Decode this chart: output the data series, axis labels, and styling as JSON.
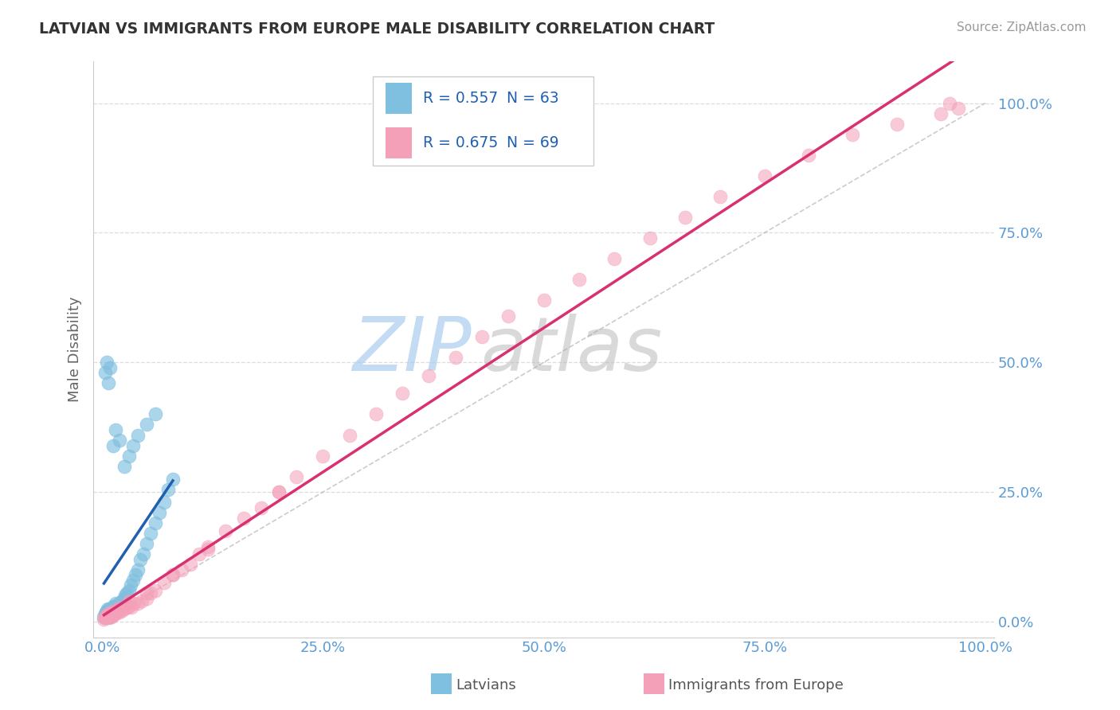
{
  "title": "LATVIAN VS IMMIGRANTS FROM EUROPE MALE DISABILITY CORRELATION CHART",
  "source_text": "Source: ZipAtlas.com",
  "ylabel": "Male Disability",
  "legend_label_1": "Latvians",
  "legend_label_2": "Immigrants from Europe",
  "R1": 0.557,
  "N1": 63,
  "R2": 0.675,
  "N2": 69,
  "color1": "#7fbfdf",
  "color2": "#f4a0b8",
  "line_color1": "#2060b0",
  "line_color2": "#d83070",
  "ref_line_color": "#aaaaaa",
  "watermark": "ZIPatlas",
  "watermark_color1": "#aaccee",
  "watermark_color2": "#bbbbbb",
  "xlim": [
    -0.01,
    1.01
  ],
  "ylim": [
    -0.03,
    1.08
  ],
  "xticks": [
    0.0,
    0.25,
    0.5,
    0.75,
    1.0
  ],
  "yticks": [
    0.0,
    0.25,
    0.5,
    0.75,
    1.0
  ],
  "xtick_labels": [
    "0.0%",
    "25.0%",
    "50.0%",
    "75.0%",
    "100.0%"
  ],
  "ytick_labels": [
    "0.0%",
    "25.0%",
    "50.0%",
    "75.0%",
    "100.0%"
  ],
  "latvian_x": [
    0.002,
    0.003,
    0.004,
    0.004,
    0.005,
    0.005,
    0.006,
    0.006,
    0.007,
    0.007,
    0.008,
    0.008,
    0.009,
    0.009,
    0.01,
    0.01,
    0.011,
    0.011,
    0.012,
    0.012,
    0.013,
    0.013,
    0.014,
    0.015,
    0.015,
    0.016,
    0.017,
    0.018,
    0.019,
    0.02,
    0.021,
    0.022,
    0.023,
    0.025,
    0.026,
    0.028,
    0.03,
    0.032,
    0.035,
    0.038,
    0.04,
    0.043,
    0.047,
    0.05,
    0.055,
    0.06,
    0.065,
    0.07,
    0.075,
    0.08,
    0.003,
    0.005,
    0.007,
    0.009,
    0.012,
    0.015,
    0.02,
    0.025,
    0.03,
    0.035,
    0.04,
    0.05,
    0.06
  ],
  "latvian_y": [
    0.01,
    0.015,
    0.012,
    0.018,
    0.01,
    0.02,
    0.015,
    0.025,
    0.01,
    0.02,
    0.015,
    0.025,
    0.01,
    0.02,
    0.015,
    0.025,
    0.015,
    0.025,
    0.015,
    0.03,
    0.02,
    0.03,
    0.025,
    0.02,
    0.035,
    0.025,
    0.03,
    0.025,
    0.035,
    0.03,
    0.035,
    0.04,
    0.04,
    0.045,
    0.05,
    0.055,
    0.06,
    0.07,
    0.08,
    0.09,
    0.1,
    0.12,
    0.13,
    0.15,
    0.17,
    0.19,
    0.21,
    0.23,
    0.255,
    0.275,
    0.48,
    0.5,
    0.46,
    0.49,
    0.34,
    0.37,
    0.35,
    0.3,
    0.32,
    0.34,
    0.36,
    0.38,
    0.4
  ],
  "immig_x": [
    0.002,
    0.003,
    0.004,
    0.005,
    0.006,
    0.007,
    0.008,
    0.009,
    0.01,
    0.011,
    0.012,
    0.013,
    0.015,
    0.016,
    0.018,
    0.02,
    0.022,
    0.025,
    0.028,
    0.03,
    0.033,
    0.036,
    0.04,
    0.045,
    0.05,
    0.055,
    0.06,
    0.07,
    0.08,
    0.09,
    0.1,
    0.11,
    0.12,
    0.14,
    0.16,
    0.18,
    0.2,
    0.22,
    0.25,
    0.28,
    0.31,
    0.34,
    0.37,
    0.4,
    0.43,
    0.46,
    0.5,
    0.54,
    0.58,
    0.62,
    0.66,
    0.7,
    0.75,
    0.8,
    0.85,
    0.9,
    0.95,
    0.97,
    0.003,
    0.006,
    0.01,
    0.015,
    0.02,
    0.03,
    0.05,
    0.08,
    0.12,
    0.2,
    0.96
  ],
  "immig_y": [
    0.005,
    0.008,
    0.01,
    0.012,
    0.01,
    0.015,
    0.008,
    0.012,
    0.015,
    0.01,
    0.012,
    0.018,
    0.015,
    0.018,
    0.02,
    0.018,
    0.022,
    0.025,
    0.028,
    0.03,
    0.028,
    0.035,
    0.035,
    0.04,
    0.045,
    0.055,
    0.06,
    0.075,
    0.09,
    0.1,
    0.11,
    0.13,
    0.145,
    0.175,
    0.2,
    0.22,
    0.25,
    0.28,
    0.32,
    0.36,
    0.4,
    0.44,
    0.475,
    0.51,
    0.55,
    0.59,
    0.62,
    0.66,
    0.7,
    0.74,
    0.78,
    0.82,
    0.86,
    0.9,
    0.94,
    0.96,
    0.98,
    0.99,
    0.008,
    0.012,
    0.018,
    0.022,
    0.028,
    0.04,
    0.055,
    0.09,
    0.14,
    0.25,
    1.0
  ]
}
